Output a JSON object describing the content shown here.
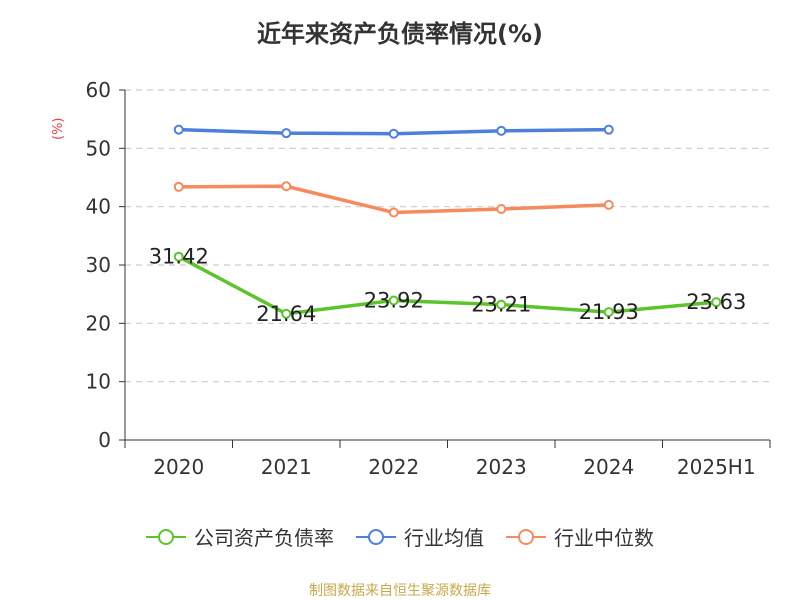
{
  "title": "近年来资产负债率情况(%)",
  "source": "制图数据来自恒生聚源数据库",
  "chart_data": {
    "type": "line",
    "title": "近年来资产负债率情况(%)",
    "ylabel": "(%)",
    "xlabel": "",
    "categories": [
      "2020",
      "2021",
      "2022",
      "2023",
      "2024",
      "2025H1"
    ],
    "ylim": [
      0,
      60
    ],
    "yticks": [
      0,
      10,
      20,
      30,
      40,
      50,
      60
    ],
    "grid": true,
    "legend_position": "bottom",
    "series": [
      {
        "name": "公司资产负债率",
        "color": "#5cc32b",
        "values": [
          31.42,
          21.64,
          23.92,
          23.21,
          21.93,
          23.63
        ],
        "labels": [
          "31.42",
          "21.64",
          "23.92",
          "23.21",
          "21.93",
          "23.63"
        ]
      },
      {
        "name": "行业均值",
        "color": "#4f7fdd",
        "values": [
          53.2,
          52.6,
          52.5,
          53.0,
          53.2,
          null
        ]
      },
      {
        "name": "行业中位数",
        "color": "#f78a5c",
        "values": [
          43.4,
          43.5,
          39.0,
          39.6,
          40.3,
          null
        ]
      }
    ]
  }
}
